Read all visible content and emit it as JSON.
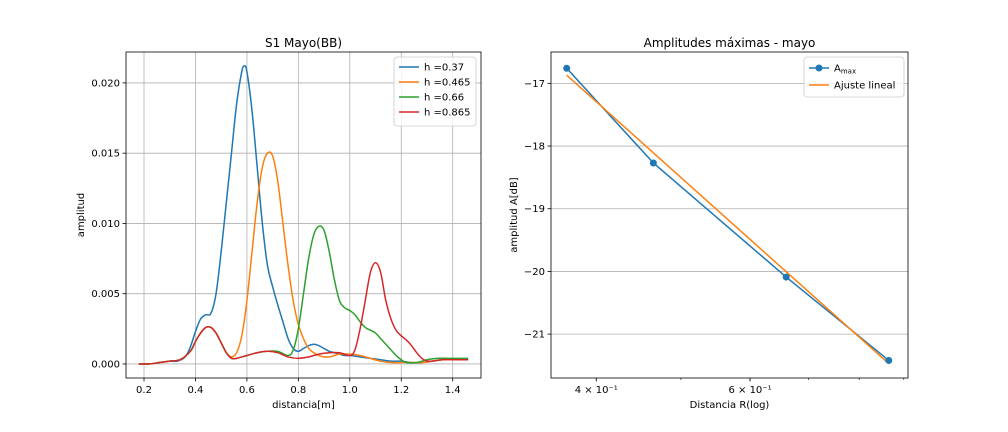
{
  "chart_data": [
    {
      "type": "line",
      "title": "S1 Mayo(BB)",
      "xlabel": "distancia[m]",
      "ylabel": "amplitud",
      "xlim": [
        0.13,
        1.51
      ],
      "ylim": [
        -0.001,
        0.0222
      ],
      "grid": true,
      "legend_position": "top-right",
      "x_ticks": [
        0.2,
        0.4,
        0.6,
        0.8,
        1.0,
        1.2,
        1.4
      ],
      "x_tick_labels": [
        "0.2",
        "0.4",
        "0.6",
        "0.8",
        "1.0",
        "1.2",
        "1.4"
      ],
      "y_ticks": [
        0.0,
        0.005,
        0.01,
        0.015,
        0.02
      ],
      "y_tick_labels": [
        "0.000",
        "0.005",
        "0.010",
        "0.015",
        "0.020"
      ],
      "series": [
        {
          "name": "h =0.37",
          "color": "#1f77b4",
          "x": [
            0.18,
            0.22,
            0.26,
            0.3,
            0.33,
            0.36,
            0.38,
            0.4,
            0.42,
            0.44,
            0.46,
            0.48,
            0.5,
            0.52,
            0.54,
            0.56,
            0.58,
            0.59,
            0.6,
            0.62,
            0.64,
            0.66,
            0.68,
            0.7,
            0.72,
            0.74,
            0.76,
            0.78,
            0.8,
            0.82,
            0.84,
            0.86,
            0.88,
            0.9,
            0.92,
            0.94,
            0.96,
            0.98,
            1.0,
            1.04,
            1.08,
            1.12,
            1.16,
            1.2,
            1.24,
            1.28,
            1.32,
            1.36,
            1.4,
            1.44,
            1.46
          ],
          "y": [
            0.0,
            0.0,
            0.0001,
            0.0002,
            0.0002,
            0.0005,
            0.0012,
            0.0023,
            0.0032,
            0.0035,
            0.0036,
            0.005,
            0.008,
            0.0115,
            0.015,
            0.0185,
            0.0208,
            0.0212,
            0.0208,
            0.018,
            0.014,
            0.01,
            0.007,
            0.0055,
            0.0042,
            0.003,
            0.0018,
            0.0011,
            0.0009,
            0.0011,
            0.0013,
            0.0014,
            0.0013,
            0.0011,
            0.0009,
            0.0008,
            0.0007,
            0.0006,
            0.0006,
            0.0005,
            0.0004,
            0.0003,
            0.0002,
            0.0002,
            0.0001,
            0.0001,
            0.0002,
            0.0003,
            0.0003,
            0.0003,
            0.0003
          ]
        },
        {
          "name": "h =0.465",
          "color": "#ff7f0e",
          "x": [
            0.18,
            0.22,
            0.26,
            0.3,
            0.34,
            0.38,
            0.4,
            0.42,
            0.44,
            0.46,
            0.48,
            0.5,
            0.52,
            0.54,
            0.56,
            0.58,
            0.6,
            0.62,
            0.64,
            0.66,
            0.68,
            0.7,
            0.72,
            0.74,
            0.76,
            0.78,
            0.8,
            0.82,
            0.84,
            0.86,
            0.88,
            0.9,
            0.92,
            0.94,
            0.96,
            1.0,
            1.04,
            1.08,
            1.12,
            1.16,
            1.2,
            1.24,
            1.28,
            1.32,
            1.36,
            1.4,
            1.44,
            1.46
          ],
          "y": [
            0.0,
            0.0,
            0.0001,
            0.0002,
            0.0003,
            0.0009,
            0.0016,
            0.0022,
            0.0026,
            0.0026,
            0.0022,
            0.0015,
            0.0008,
            0.0005,
            0.0008,
            0.002,
            0.0045,
            0.008,
            0.0115,
            0.014,
            0.015,
            0.0148,
            0.013,
            0.01,
            0.007,
            0.0045,
            0.0028,
            0.0018,
            0.0011,
            0.0008,
            0.0006,
            0.0005,
            0.0005,
            0.0006,
            0.0007,
            0.0007,
            0.0006,
            0.0004,
            0.0002,
            0.0001,
            0.0001,
            0.0001,
            0.0001,
            0.0002,
            0.0003,
            0.0003,
            0.0003,
            0.0003
          ]
        },
        {
          "name": "h =0.66",
          "color": "#2ca02c",
          "x": [
            0.18,
            0.22,
            0.26,
            0.3,
            0.34,
            0.38,
            0.4,
            0.42,
            0.44,
            0.46,
            0.48,
            0.5,
            0.52,
            0.54,
            0.56,
            0.6,
            0.64,
            0.68,
            0.72,
            0.76,
            0.78,
            0.8,
            0.82,
            0.84,
            0.86,
            0.88,
            0.9,
            0.92,
            0.94,
            0.96,
            0.98,
            1.0,
            1.02,
            1.04,
            1.06,
            1.08,
            1.1,
            1.12,
            1.14,
            1.16,
            1.18,
            1.2,
            1.22,
            1.26,
            1.3,
            1.34,
            1.38,
            1.42,
            1.46
          ],
          "y": [
            0.0,
            0.0,
            0.0001,
            0.0002,
            0.0003,
            0.0009,
            0.0016,
            0.0022,
            0.0026,
            0.0026,
            0.0022,
            0.0015,
            0.0008,
            0.0004,
            0.0004,
            0.0006,
            0.0008,
            0.0009,
            0.0009,
            0.0006,
            0.001,
            0.0025,
            0.005,
            0.0075,
            0.0092,
            0.0098,
            0.0095,
            0.008,
            0.006,
            0.0045,
            0.004,
            0.0038,
            0.0035,
            0.003,
            0.0026,
            0.0024,
            0.0022,
            0.0018,
            0.0014,
            0.001,
            0.0006,
            0.0003,
            0.0001,
            0.0001,
            0.0003,
            0.0004,
            0.0004,
            0.0004,
            0.0004
          ]
        },
        {
          "name": "h =0.865",
          "color": "#d62728",
          "x": [
            0.18,
            0.22,
            0.26,
            0.3,
            0.34,
            0.38,
            0.4,
            0.42,
            0.44,
            0.46,
            0.48,
            0.5,
            0.52,
            0.54,
            0.56,
            0.6,
            0.64,
            0.68,
            0.72,
            0.76,
            0.8,
            0.84,
            0.88,
            0.92,
            0.96,
            1.0,
            1.02,
            1.04,
            1.06,
            1.08,
            1.1,
            1.12,
            1.14,
            1.16,
            1.18,
            1.2,
            1.22,
            1.24,
            1.26,
            1.28,
            1.3,
            1.32,
            1.36,
            1.4,
            1.44,
            1.46
          ],
          "y": [
            0.0,
            0.0,
            0.0001,
            0.0002,
            0.0003,
            0.0009,
            0.0016,
            0.0022,
            0.0026,
            0.0026,
            0.0022,
            0.0015,
            0.0008,
            0.0004,
            0.0004,
            0.0006,
            0.0008,
            0.0009,
            0.0008,
            0.0005,
            0.0004,
            0.0005,
            0.0007,
            0.0008,
            0.0008,
            0.0006,
            0.001,
            0.0025,
            0.0045,
            0.0065,
            0.0072,
            0.0065,
            0.0045,
            0.0032,
            0.0024,
            0.002,
            0.0017,
            0.0013,
            0.0008,
            0.0004,
            0.0002,
            0.0002,
            0.0003,
            0.0003,
            0.0003,
            0.0003
          ]
        }
      ]
    },
    {
      "type": "line",
      "title": "Amplitudes máximas - mayo",
      "xlabel": "Distancia R(log)",
      "ylabel": "amplitud A[dB]",
      "xscale": "log",
      "xlim": [
        0.355,
        0.91
      ],
      "ylim": [
        -21.7,
        -16.5
      ],
      "grid": "y-only",
      "legend_position": "top-right",
      "x_ticks": [
        0.4,
        0.6
      ],
      "x_tick_labels": [
        "4 × 10⁻¹",
        "6 × 10⁻¹"
      ],
      "y_ticks": [
        -17,
        -18,
        -19,
        -20,
        -21
      ],
      "y_tick_labels": [
        "−17",
        "−18",
        "−19",
        "−20",
        "−21"
      ],
      "series": [
        {
          "name": "A_max",
          "name_main": "A",
          "name_sub": "max",
          "color": "#1f77b4",
          "marker": "circle",
          "x": [
            0.37,
            0.465,
            0.66,
            0.865
          ],
          "y": [
            -16.76,
            -18.27,
            -20.09,
            -21.42
          ]
        },
        {
          "name": "Ajuste lineal",
          "color": "#ff7f0e",
          "x": [
            0.37,
            0.865
          ],
          "y": [
            -16.87,
            -21.47
          ]
        }
      ]
    }
  ]
}
